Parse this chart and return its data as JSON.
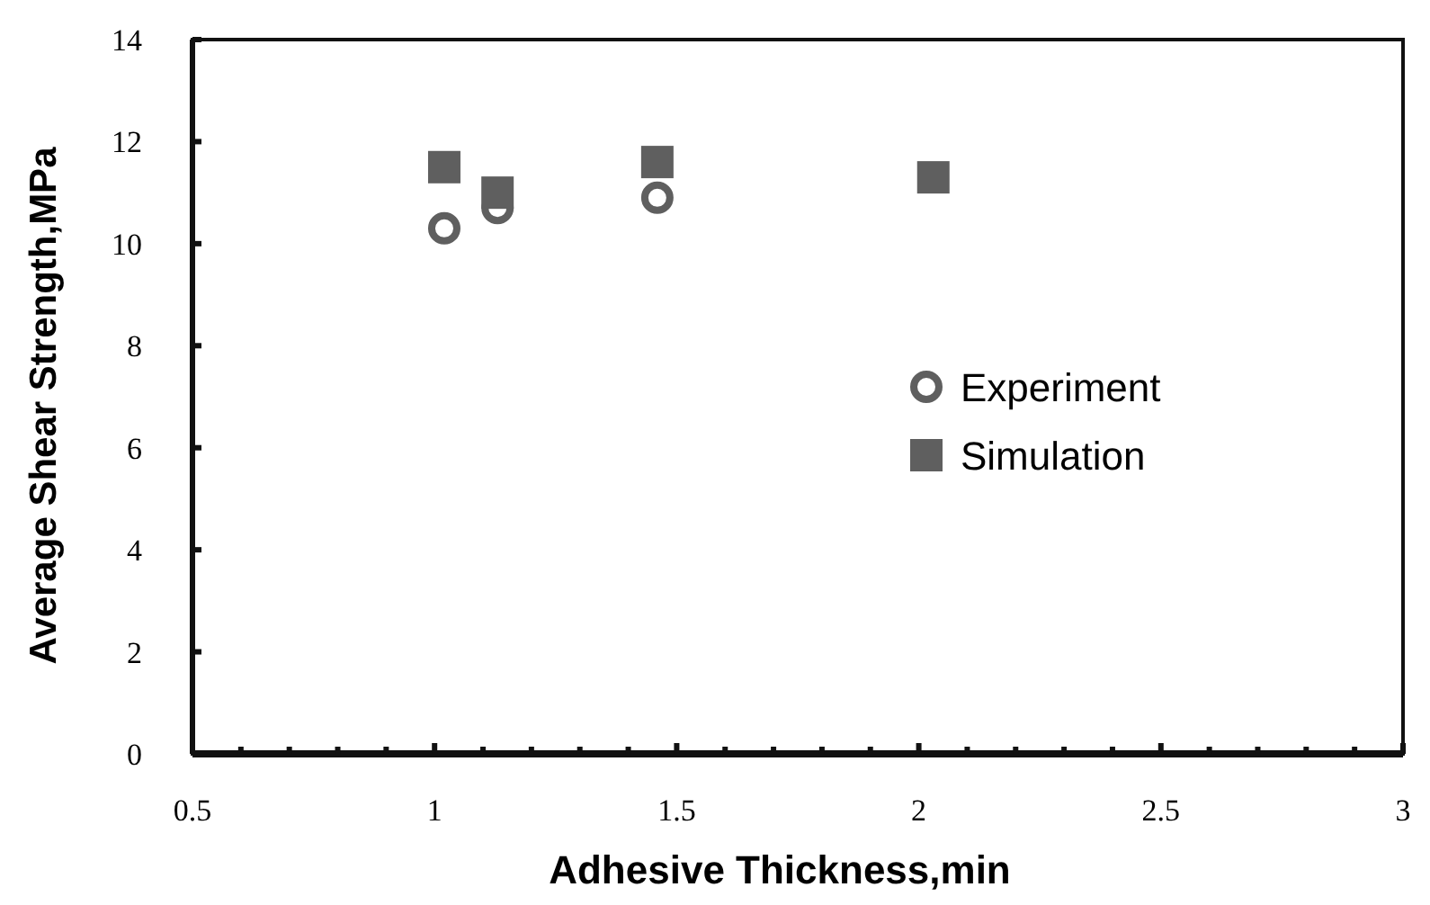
{
  "chart_data": {
    "type": "scatter",
    "xlabel": "Adhesive Thickness,min",
    "ylabel": "Average Shear Strength,MPa",
    "xlim": [
      0.5,
      3
    ],
    "ylim": [
      0,
      14
    ],
    "xticks": [
      0.5,
      {
        "value": 0.6,
        "label": null
      },
      {
        "value": 0.7,
        "label": null
      },
      {
        "value": 0.8,
        "label": null
      },
      {
        "value": 0.9,
        "label": null
      },
      1,
      {
        "value": 1.1,
        "label": null
      },
      {
        "value": 1.2,
        "label": null
      },
      {
        "value": 1.3,
        "label": null
      },
      {
        "value": 1.4,
        "label": null
      },
      1.5,
      {
        "value": 1.6,
        "label": null
      },
      {
        "value": 1.7,
        "label": null
      },
      {
        "value": 1.8,
        "label": null
      },
      {
        "value": 1.9,
        "label": null
      },
      2,
      {
        "value": 2.1,
        "label": null
      },
      {
        "value": 2.2,
        "label": null
      },
      {
        "value": 2.3,
        "label": null
      },
      {
        "value": 2.4,
        "label": null
      },
      2.5,
      {
        "value": 2.6,
        "label": null
      },
      {
        "value": 2.7,
        "label": null
      },
      {
        "value": 2.8,
        "label": null
      },
      {
        "value": 2.9,
        "label": null
      },
      3
    ],
    "yticks": [
      0,
      2,
      4,
      6,
      8,
      10,
      12,
      14
    ],
    "legend": "right",
    "grid": false,
    "series": [
      {
        "name": "Experiment",
        "color": "#5f5f5f",
        "marker": "circle",
        "x": [
          1.02,
          1.13,
          1.46
        ],
        "values": [
          10.3,
          10.7,
          10.9
        ]
      },
      {
        "name": "Simulation",
        "color": "#5f5f5f",
        "marker": "square",
        "x": [
          1.02,
          1.13,
          1.46,
          2.03
        ],
        "values": [
          11.5,
          11.0,
          11.6,
          11.3
        ]
      }
    ]
  }
}
